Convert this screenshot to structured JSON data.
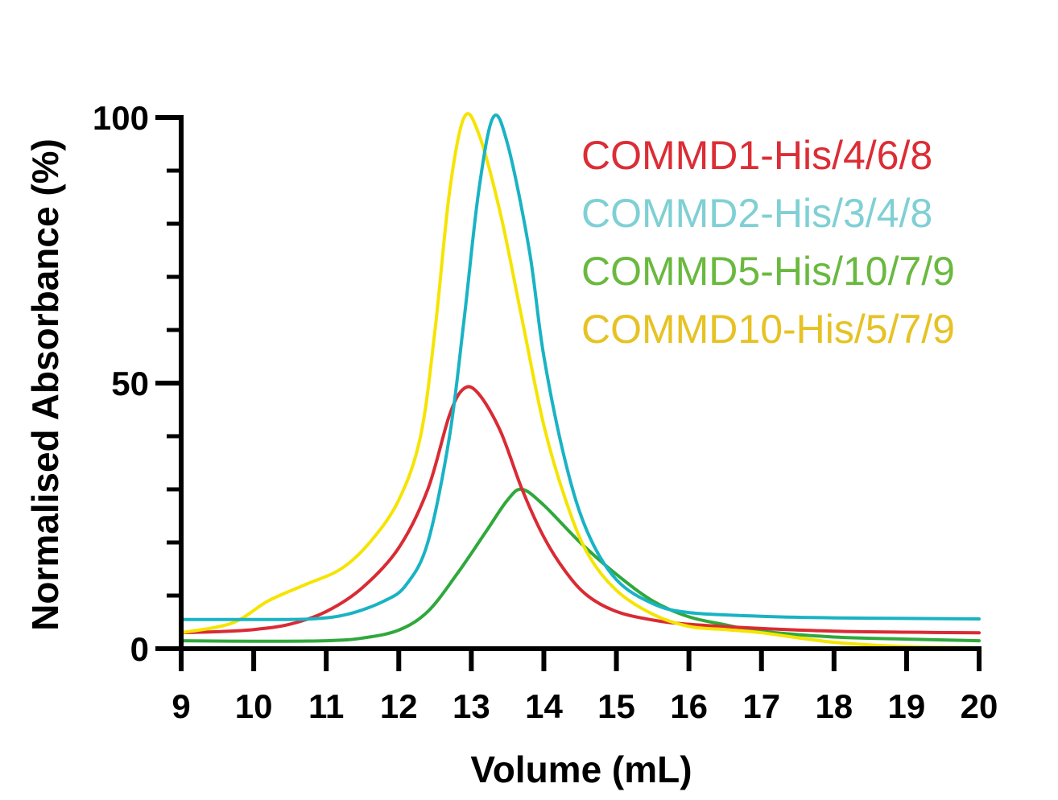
{
  "chart_data": {
    "type": "line",
    "title": "",
    "xlabel": "Volume (mL)",
    "ylabel": "Normalised Absorbance (%)",
    "xlim": [
      9,
      20
    ],
    "ylim": [
      0,
      100
    ],
    "x_ticks": [
      9,
      10,
      11,
      12,
      13,
      14,
      15,
      16,
      17,
      18,
      19,
      20
    ],
    "y_ticks": [
      0,
      50,
      100
    ],
    "grid": false,
    "legend_position": "top-right",
    "series": [
      {
        "name": "COMMD1-His/4/6/8",
        "color": "#d92b34",
        "points": [
          [
            9,
            3
          ],
          [
            9.5,
            3.2
          ],
          [
            10,
            3.6
          ],
          [
            10.5,
            4.6
          ],
          [
            11,
            7
          ],
          [
            11.5,
            11.5
          ],
          [
            12,
            19
          ],
          [
            12.4,
            30
          ],
          [
            12.7,
            44
          ],
          [
            12.9,
            49
          ],
          [
            13.1,
            48
          ],
          [
            13.4,
            41
          ],
          [
            13.7,
            30
          ],
          [
            14,
            21
          ],
          [
            14.3,
            14.5
          ],
          [
            14.6,
            10
          ],
          [
            15,
            7
          ],
          [
            15.5,
            5.4
          ],
          [
            16,
            4.6
          ],
          [
            17,
            3.8
          ],
          [
            18,
            3.3
          ],
          [
            19,
            3.1
          ],
          [
            20,
            3
          ]
        ]
      },
      {
        "name": "COMMD2-His/3/4/8",
        "color": "#19b3c4",
        "points": [
          [
            9,
            5.5
          ],
          [
            10,
            5.5
          ],
          [
            10.8,
            5.6
          ],
          [
            11.3,
            6.5
          ],
          [
            11.8,
            9
          ],
          [
            12.1,
            12
          ],
          [
            12.4,
            20
          ],
          [
            12.7,
            40
          ],
          [
            12.9,
            62
          ],
          [
            13.1,
            86
          ],
          [
            13.3,
            100
          ],
          [
            13.5,
            95
          ],
          [
            13.8,
            75
          ],
          [
            14,
            55
          ],
          [
            14.3,
            35
          ],
          [
            14.6,
            22
          ],
          [
            15,
            13
          ],
          [
            15.5,
            8.5
          ],
          [
            16,
            6.8
          ],
          [
            17,
            6.1
          ],
          [
            18,
            5.8
          ],
          [
            19,
            5.7
          ],
          [
            20,
            5.6
          ]
        ]
      },
      {
        "name": "COMMD5-His/10/7/9",
        "color": "#2fa83c",
        "points": [
          [
            9,
            1.5
          ],
          [
            10,
            1.4
          ],
          [
            11,
            1.5
          ],
          [
            11.5,
            2
          ],
          [
            12,
            3.5
          ],
          [
            12.4,
            7
          ],
          [
            12.8,
            14
          ],
          [
            13.2,
            22
          ],
          [
            13.5,
            28
          ],
          [
            13.7,
            30
          ],
          [
            14,
            27
          ],
          [
            14.5,
            20
          ],
          [
            15,
            14
          ],
          [
            15.5,
            9
          ],
          [
            16,
            6
          ],
          [
            16.5,
            4.5
          ],
          [
            17,
            3.3
          ],
          [
            18,
            2.2
          ],
          [
            19,
            1.8
          ],
          [
            20,
            1.5
          ]
        ]
      },
      {
        "name": "COMMD10-His/5/7/9",
        "color": "#f5e400",
        "points": [
          [
            9,
            3
          ],
          [
            9.7,
            4.8
          ],
          [
            10.2,
            9
          ],
          [
            10.7,
            12
          ],
          [
            11.2,
            15
          ],
          [
            11.6,
            20
          ],
          [
            12,
            28
          ],
          [
            12.3,
            40
          ],
          [
            12.5,
            60
          ],
          [
            12.7,
            86
          ],
          [
            12.9,
            100
          ],
          [
            13.1,
            97
          ],
          [
            13.4,
            82
          ],
          [
            13.7,
            62
          ],
          [
            14,
            42
          ],
          [
            14.3,
            28
          ],
          [
            14.6,
            18
          ],
          [
            15,
            11
          ],
          [
            15.5,
            6.5
          ],
          [
            16,
            4.2
          ],
          [
            16.5,
            3.6
          ],
          [
            17,
            3
          ],
          [
            18,
            1.2
          ],
          [
            19,
            0.4
          ],
          [
            20,
            0.2
          ]
        ]
      }
    ]
  },
  "legend": {
    "entries": [
      {
        "label": "COMMD1-His/4/6/8",
        "color": "#db2d35"
      },
      {
        "label": "COMMD2-His/3/4/8",
        "color": "#7fd0d4"
      },
      {
        "label": "COMMD5-His/10/7/9",
        "color": "#6ab93f"
      },
      {
        "label": "COMMD10-His/5/7/9",
        "color": "#e6c224"
      }
    ]
  }
}
